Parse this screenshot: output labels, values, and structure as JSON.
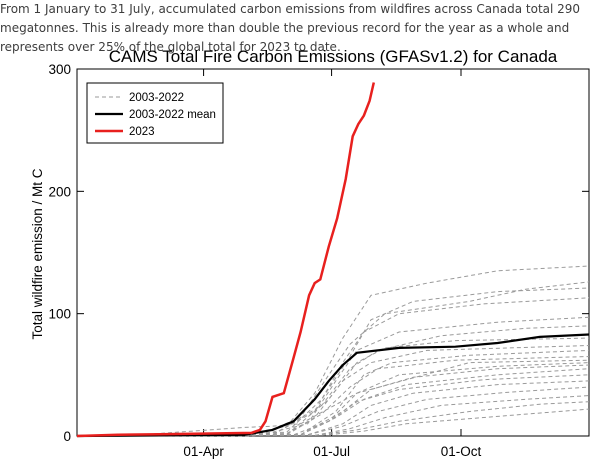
{
  "caption": "From 1 January to 31 July, accumulated carbon emissions from wildfires across Canada total 290 megatonnes. This is already more than double the previous record for the year as a whole and represents over 25% of the global total for 2023 to date.",
  "colors": {
    "historical": "#9a9a9a",
    "mean": "#000000",
    "y2023": "#e8201e"
  },
  "chart_data": {
    "type": "line",
    "title": "CAMS Total Fire Carbon Emissions (GFASv1.2) for Canada",
    "xlabel": "",
    "ylabel": "Total wildfire emission / Mt C",
    "xlim": [
      1,
      365
    ],
    "ylim": [
      0,
      300
    ],
    "x_unit": "day of year",
    "yticks": [
      0,
      100,
      200,
      300
    ],
    "xticks": [
      {
        "label": "01-Apr",
        "day": 91
      },
      {
        "label": "01-Jul",
        "day": 182
      },
      {
        "label": "01-Oct",
        "day": 274
      }
    ],
    "grid": false,
    "legend_position": "top-left",
    "legend": [
      {
        "label": "2003-2022",
        "style": "dashed-gray"
      },
      {
        "label": "2003-2022 mean",
        "style": "solid-black"
      },
      {
        "label": "2023",
        "style": "solid-red"
      }
    ],
    "series": [
      {
        "name": "2023",
        "x": [
          1,
          30,
          60,
          90,
          125,
          131,
          135,
          140,
          148,
          155,
          160,
          166,
          170,
          174,
          180,
          186,
          192,
          197,
          201,
          205,
          209,
          212
        ],
        "y": [
          0,
          1,
          1.5,
          2,
          2.5,
          5,
          12,
          32,
          35,
          64,
          85,
          115,
          125,
          128,
          155,
          178,
          210,
          245,
          255,
          262,
          274,
          289
        ]
      },
      {
        "name": "2003-2022 mean",
        "x": [
          1,
          60,
          120,
          140,
          155,
          170,
          180,
          190,
          200,
          230,
          270,
          300,
          330,
          365
        ],
        "y": [
          0,
          0.5,
          1,
          5,
          12,
          30,
          45,
          58,
          68,
          72,
          73,
          76,
          81,
          83
        ]
      },
      {
        "x": [
          1,
          120,
          150,
          170,
          190,
          210,
          250,
          300,
          365
        ],
        "y": [
          0,
          1,
          8,
          35,
          80,
          115,
          125,
          135,
          139
        ]
      },
      {
        "x": [
          1,
          130,
          160,
          180,
          195,
          220,
          280,
          320,
          365
        ],
        "y": [
          0,
          1,
          15,
          50,
          75,
          100,
          110,
          120,
          126
        ]
      },
      {
        "x": [
          1,
          140,
          170,
          190,
          205,
          230,
          290,
          365
        ],
        "y": [
          0,
          1,
          20,
          60,
          85,
          100,
          108,
          113
        ]
      },
      {
        "x": [
          1,
          130,
          165,
          185,
          200,
          230,
          300,
          365
        ],
        "y": [
          0,
          0.5,
          10,
          45,
          70,
          85,
          93,
          97
        ]
      },
      {
        "x": [
          1,
          140,
          175,
          195,
          215,
          260,
          320,
          365
        ],
        "y": [
          0,
          1,
          25,
          55,
          70,
          82,
          88,
          90
        ]
      },
      {
        "x": [
          1,
          150,
          180,
          200,
          220,
          270,
          365
        ],
        "y": [
          0,
          1,
          30,
          60,
          72,
          78,
          80
        ]
      },
      {
        "x": [
          1,
          150,
          170,
          190,
          210,
          250,
          365
        ],
        "y": [
          0,
          2,
          15,
          45,
          60,
          70,
          74
        ]
      },
      {
        "x": [
          1,
          160,
          185,
          205,
          225,
          280,
          365
        ],
        "y": [
          0,
          1,
          20,
          50,
          60,
          66,
          70
        ]
      },
      {
        "x": [
          1,
          150,
          175,
          195,
          215,
          270,
          365
        ],
        "y": [
          0,
          1,
          18,
          40,
          55,
          62,
          65
        ]
      },
      {
        "x": [
          1,
          155,
          180,
          200,
          230,
          300,
          365
        ],
        "y": [
          0,
          1,
          12,
          35,
          50,
          57,
          60
        ]
      },
      {
        "x": [
          1,
          160,
          190,
          210,
          240,
          300,
          365
        ],
        "y": [
          0,
          1,
          20,
          38,
          48,
          55,
          58
        ]
      },
      {
        "x": [
          1,
          160,
          185,
          205,
          235,
          300,
          365
        ],
        "y": [
          0,
          1,
          15,
          30,
          42,
          50,
          55
        ]
      },
      {
        "x": [
          1,
          160,
          180,
          200,
          230,
          290,
          365
        ],
        "y": [
          0,
          1,
          12,
          28,
          38,
          46,
          50
        ]
      },
      {
        "x": [
          1,
          165,
          190,
          210,
          240,
          300,
          365
        ],
        "y": [
          0,
          1,
          10,
          25,
          35,
          42,
          45
        ]
      },
      {
        "x": [
          1,
          165,
          190,
          215,
          250,
          310,
          365
        ],
        "y": [
          0,
          1,
          8,
          20,
          30,
          36,
          40
        ]
      },
      {
        "x": [
          1,
          170,
          195,
          220,
          260,
          320,
          365
        ],
        "y": [
          0,
          0.5,
          6,
          15,
          25,
          30,
          33
        ]
      },
      {
        "x": [
          1,
          170,
          200,
          230,
          280,
          330,
          365
        ],
        "y": [
          0,
          0.5,
          5,
          12,
          20,
          26,
          28
        ]
      },
      {
        "x": [
          1,
          175,
          205,
          235,
          300,
          365
        ],
        "y": [
          0,
          0.5,
          4,
          10,
          16,
          22
        ]
      },
      {
        "x": [
          1,
          40,
          120,
          140,
          160,
          200,
          280,
          365
        ],
        "y": [
          0,
          0.5,
          7,
          8,
          10,
          35,
          60,
          62
        ]
      },
      {
        "x": [
          1,
          150,
          175,
          195,
          210,
          240,
          300,
          365
        ],
        "y": [
          0,
          3,
          30,
          65,
          95,
          110,
          118,
          121
        ]
      }
    ]
  }
}
